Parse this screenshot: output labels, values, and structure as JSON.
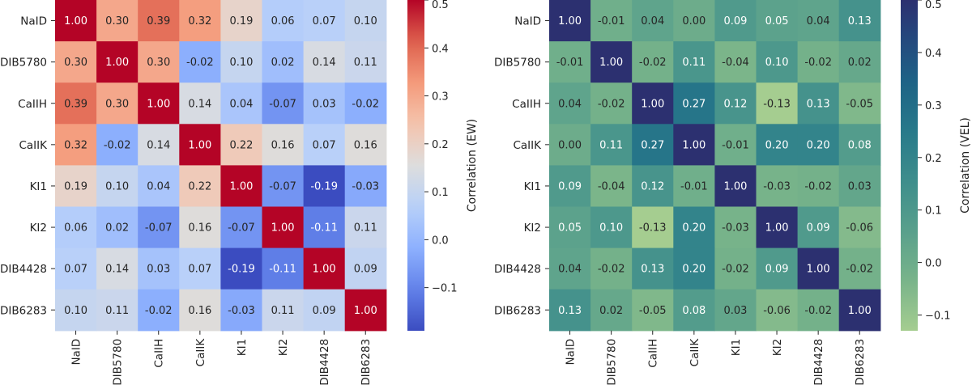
{
  "chart_data": [
    {
      "type": "heatmap",
      "id": "ew",
      "labels": [
        "NaID",
        "DIB5780",
        "CaIIH",
        "CaIIK",
        "KI1",
        "KI2",
        "DIB4428",
        "DIB6283"
      ],
      "values": [
        [
          1.0,
          0.3,
          0.39,
          0.32,
          0.19,
          0.06,
          0.07,
          0.1
        ],
        [
          0.3,
          1.0,
          0.3,
          -0.02,
          0.1,
          0.02,
          0.14,
          0.11
        ],
        [
          0.39,
          0.3,
          1.0,
          0.14,
          0.04,
          -0.07,
          0.03,
          -0.02
        ],
        [
          0.32,
          -0.02,
          0.14,
          1.0,
          0.22,
          0.16,
          0.07,
          0.16
        ],
        [
          0.19,
          0.1,
          0.04,
          0.22,
          1.0,
          -0.07,
          -0.19,
          -0.03
        ],
        [
          0.06,
          0.02,
          -0.07,
          0.16,
          -0.07,
          1.0,
          -0.11,
          0.11
        ],
        [
          0.07,
          0.14,
          0.03,
          0.07,
          -0.19,
          -0.11,
          1.0,
          0.09
        ],
        [
          0.1,
          0.11,
          -0.02,
          0.16,
          -0.03,
          0.11,
          0.09,
          1.0
        ]
      ],
      "colormap": "coolwarm",
      "vmin": -0.19,
      "vmax": 0.5,
      "colorbar_label": "Correlation (EW)",
      "colorbar_ticks": [
        -0.1,
        0.0,
        0.1,
        0.2,
        0.3,
        0.4,
        0.5
      ],
      "colorbar_tick_labels": [
        "−0.1",
        "0.0",
        "0.1",
        "0.2",
        "0.3",
        "0.4",
        "0.5"
      ]
    },
    {
      "type": "heatmap",
      "id": "vel",
      "labels": [
        "NaID",
        "DIB5780",
        "CaIIH",
        "CaIIK",
        "KI1",
        "KI2",
        "DIB4428",
        "DIB6283"
      ],
      "values": [
        [
          1.0,
          -0.01,
          0.04,
          0.0,
          0.09,
          0.05,
          0.04,
          0.13
        ],
        [
          -0.01,
          1.0,
          -0.02,
          0.11,
          -0.04,
          0.1,
          -0.02,
          0.02
        ],
        [
          0.04,
          -0.02,
          1.0,
          0.27,
          0.12,
          -0.13,
          0.13,
          -0.05
        ],
        [
          0.0,
          0.11,
          0.27,
          1.0,
          -0.01,
          0.2,
          0.2,
          0.08
        ],
        [
          0.09,
          -0.04,
          0.12,
          -0.01,
          1.0,
          -0.03,
          -0.02,
          0.03
        ],
        [
          0.05,
          0.1,
          -0.13,
          0.2,
          -0.03,
          1.0,
          0.09,
          -0.06
        ],
        [
          0.04,
          -0.02,
          0.13,
          0.2,
          -0.02,
          0.09,
          1.0,
          -0.02
        ],
        [
          0.13,
          0.02,
          -0.05,
          0.08,
          0.03,
          -0.06,
          -0.02,
          1.0
        ]
      ],
      "colormap": "crest",
      "vmin": -0.13,
      "vmax": 0.5,
      "colorbar_label": "Correlation (VEL)",
      "colorbar_ticks": [
        -0.1,
        0.0,
        0.1,
        0.2,
        0.3,
        0.4,
        0.5
      ],
      "colorbar_tick_labels": [
        "−0.1",
        "0.0",
        "0.1",
        "0.2",
        "0.3",
        "0.4",
        "0.5"
      ]
    }
  ]
}
